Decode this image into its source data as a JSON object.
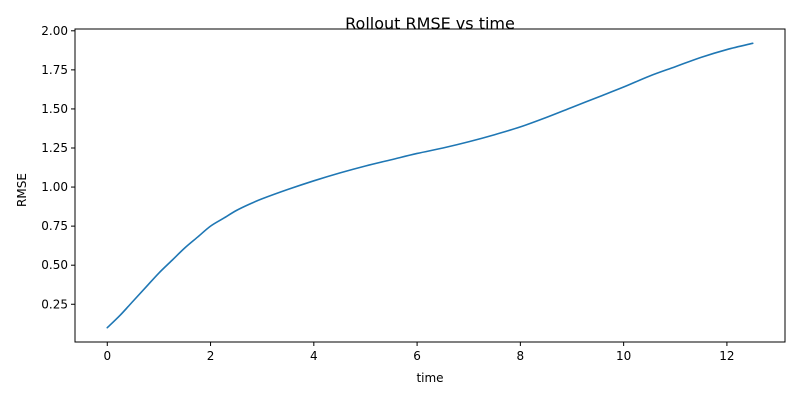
{
  "chart_data": {
    "type": "line",
    "title": "Rollout RMSE vs time",
    "xlabel": "time",
    "ylabel": "RMSE",
    "xlim": [
      -0.625,
      13.125
    ],
    "ylim": [
      0.0085,
      2.0115
    ],
    "xticks": [
      0,
      2,
      4,
      6,
      8,
      10,
      12
    ],
    "xtick_labels": [
      "0",
      "2",
      "4",
      "6",
      "8",
      "10",
      "12"
    ],
    "yticks": [
      0.25,
      0.5,
      0.75,
      1.0,
      1.25,
      1.5,
      1.75,
      2.0
    ],
    "ytick_labels": [
      "0.25",
      "0.50",
      "0.75",
      "1.00",
      "1.25",
      "1.50",
      "1.75",
      "2.00"
    ],
    "grid": false,
    "series": [
      {
        "color": "#1f77b4",
        "x": [
          0,
          0.25,
          0.5,
          0.75,
          1.0,
          1.25,
          1.5,
          1.75,
          2.0,
          2.25,
          2.5,
          2.75,
          3.0,
          3.5,
          4.0,
          4.5,
          5.0,
          5.5,
          6.0,
          6.5,
          7.0,
          7.5,
          8.0,
          8.5,
          9.0,
          9.5,
          10.0,
          10.5,
          11.0,
          11.5,
          12.0,
          12.5
        ],
        "y": [
          0.1,
          0.18,
          0.27,
          0.36,
          0.45,
          0.53,
          0.61,
          0.68,
          0.75,
          0.8,
          0.85,
          0.89,
          0.925,
          0.985,
          1.04,
          1.09,
          1.135,
          1.175,
          1.215,
          1.25,
          1.29,
          1.335,
          1.385,
          1.445,
          1.51,
          1.575,
          1.64,
          1.71,
          1.77,
          1.83,
          1.88,
          1.92
        ]
      }
    ]
  }
}
